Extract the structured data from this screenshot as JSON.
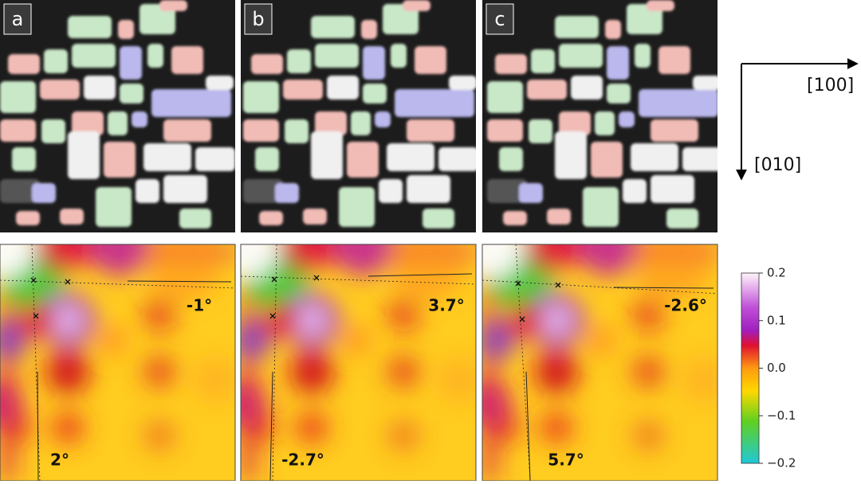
{
  "panels": [
    {
      "label": "a",
      "angle_horizontal": "-1°",
      "angle_vertical": "2°"
    },
    {
      "label": "b",
      "angle_horizontal": "3.7°",
      "angle_vertical": "-2.7°"
    },
    {
      "label": "c",
      "angle_horizontal": "-2.6°",
      "angle_vertical": "5.7°"
    }
  ],
  "axes": {
    "horizontal": "[100]",
    "vertical": "[010]"
  },
  "colorbar": {
    "lim": [
      -0.2,
      0.2
    ],
    "ticks": [
      0.2,
      0.1,
      {
        "value": 0,
        "label": "0.0"
      },
      {
        "value": -0.1,
        "label": "−0.1"
      },
      {
        "value": -0.2,
        "label": "−0.2"
      }
    ]
  }
}
